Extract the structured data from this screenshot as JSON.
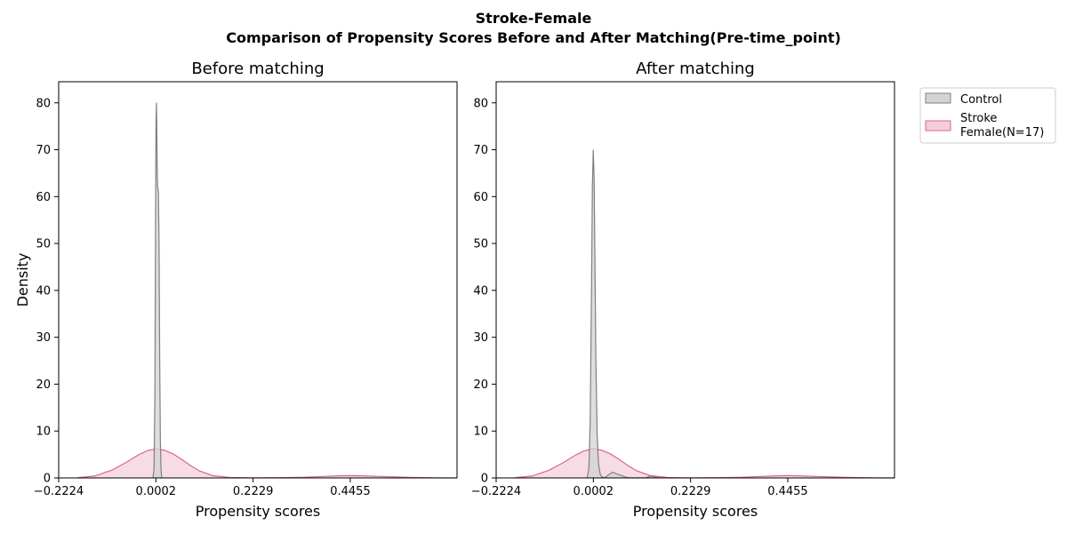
{
  "figure": {
    "suptitle_line1": "Stroke-Female",
    "suptitle_line2": "Comparison of Propensity Scores Before and After Matching(Pre-time_point)"
  },
  "legend": {
    "items": [
      {
        "label": "Control",
        "color": "#808080"
      },
      {
        "label_line1": "Stroke",
        "label_line2": "Female(N=17)",
        "color": "#d9668a"
      }
    ]
  },
  "colors": {
    "control_line": "#808080",
    "control_fill": "#d3d3d3",
    "stroke_line": "#d9668a",
    "stroke_fill": "#f4cdd9"
  },
  "chart_data": [
    {
      "type": "area",
      "title": "Before matching",
      "xlabel": "Propensity scores",
      "ylabel": "Density",
      "xlim": [
        -0.2224,
        0.69
      ],
      "ylim": [
        0,
        84.5
      ],
      "xticks": [
        -0.2224,
        0.0002,
        0.2229,
        0.4455
      ],
      "xtick_labels": [
        "−0.2224",
        "0.0002",
        "0.2229",
        "0.4455"
      ],
      "yticks": [
        0,
        10,
        20,
        30,
        40,
        50,
        60,
        70,
        80
      ],
      "ytick_labels": [
        "0",
        "10",
        "20",
        "30",
        "40",
        "50",
        "60",
        "70",
        "80"
      ],
      "series": [
        {
          "name": "Control",
          "x": [
            -0.0065,
            -0.004,
            -0.002,
            -0.0005,
            0.0005,
            0.0015,
            0.0025,
            0.0035,
            0.0045,
            0.006,
            0.0075,
            0.009,
            0.0105,
            0.012,
            0.0135
          ],
          "y": [
            0,
            2,
            18,
            55,
            76,
            80,
            73,
            64,
            62,
            61,
            50,
            25,
            8,
            2,
            0
          ]
        },
        {
          "name": "Stroke Female(N=17)",
          "x": [
            -0.18,
            -0.14,
            -0.1,
            -0.07,
            -0.04,
            -0.02,
            0.0,
            0.02,
            0.04,
            0.06,
            0.08,
            0.1,
            0.13,
            0.17,
            0.22,
            0.28,
            0.34,
            0.38,
            0.42,
            0.445,
            0.47,
            0.52,
            0.58,
            0.64,
            0.69
          ],
          "y": [
            0.05,
            0.4,
            1.7,
            3.2,
            4.9,
            5.8,
            6.2,
            5.9,
            5.1,
            3.9,
            2.6,
            1.5,
            0.5,
            0.1,
            0.02,
            0.05,
            0.15,
            0.3,
            0.45,
            0.5,
            0.45,
            0.3,
            0.12,
            0.03,
            0.0
          ]
        }
      ]
    },
    {
      "type": "area",
      "title": "After matching",
      "xlabel": "Propensity scores",
      "ylabel": "",
      "xlim": [
        -0.2224,
        0.69
      ],
      "ylim": [
        0,
        84.5
      ],
      "xticks": [
        -0.2224,
        0.0002,
        0.2229,
        0.4455
      ],
      "xtick_labels": [
        "−0.2224",
        "0.0002",
        "0.2229",
        "0.4455"
      ],
      "yticks": [
        0,
        10,
        20,
        30,
        40,
        50,
        60,
        70,
        80
      ],
      "ytick_labels": [
        "0",
        "10",
        "20",
        "30",
        "40",
        "50",
        "60",
        "70",
        "80"
      ],
      "series": [
        {
          "name": "Control",
          "x": [
            -0.014,
            -0.01,
            -0.007,
            -0.004,
            -0.002,
            0.0,
            0.002,
            0.004,
            0.006,
            0.009,
            0.012,
            0.016,
            0.02,
            0.025,
            0.03,
            0.04,
            0.045,
            0.05,
            0.055,
            0.06,
            0.065,
            0.07,
            0.075,
            0.08,
            0.1,
            0.12,
            0.13,
            0.135,
            0.14,
            0.15
          ],
          "y": [
            0,
            2,
            12,
            40,
            62,
            70,
            64,
            45,
            25,
            9,
            3,
            0.8,
            0.2,
            0.05,
            0.3,
            1.0,
            1.2,
            1.0,
            0.8,
            0.7,
            0.5,
            0.3,
            0.15,
            0.05,
            0.0,
            0.05,
            0.3,
            0.4,
            0.2,
            0.0
          ]
        },
        {
          "name": "Stroke Female(N=17)",
          "x": [
            -0.18,
            -0.14,
            -0.1,
            -0.07,
            -0.04,
            -0.02,
            0.0,
            0.02,
            0.04,
            0.06,
            0.08,
            0.1,
            0.13,
            0.17,
            0.22,
            0.28,
            0.34,
            0.38,
            0.42,
            0.445,
            0.47,
            0.52,
            0.58,
            0.64,
            0.69
          ],
          "y": [
            0.05,
            0.4,
            1.7,
            3.2,
            4.9,
            5.8,
            6.2,
            5.9,
            5.1,
            3.9,
            2.6,
            1.5,
            0.5,
            0.1,
            0.02,
            0.05,
            0.15,
            0.3,
            0.45,
            0.5,
            0.45,
            0.3,
            0.12,
            0.03,
            0.0
          ]
        }
      ]
    }
  ]
}
